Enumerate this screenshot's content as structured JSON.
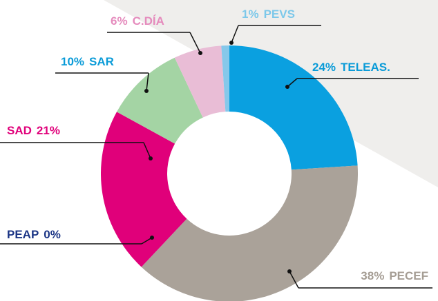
{
  "chart_data": {
    "type": "donut",
    "categories": [
      "TELEAS.",
      "PECEF",
      "PEAP",
      "SAD",
      "SAR",
      "C.DÍA",
      "PEVS"
    ],
    "values": [
      24,
      38,
      0,
      21,
      10,
      6,
      1
    ],
    "value_labels": [
      "24%",
      "38%",
      "0%",
      "21%",
      "10%",
      "6%",
      "1%"
    ],
    "colors": [
      "#0aa0e0",
      "#aaa299",
      "#1b3585",
      "#e0007a",
      "#a4d4a4",
      "#e9bdd6",
      "#86c8ea"
    ],
    "label_colors": [
      "#0a9bd8",
      "#a59d94",
      "#1b3585",
      "#e0007a",
      "#0a9bd8",
      "#e58bbd",
      "#7cc8ea"
    ]
  }
}
